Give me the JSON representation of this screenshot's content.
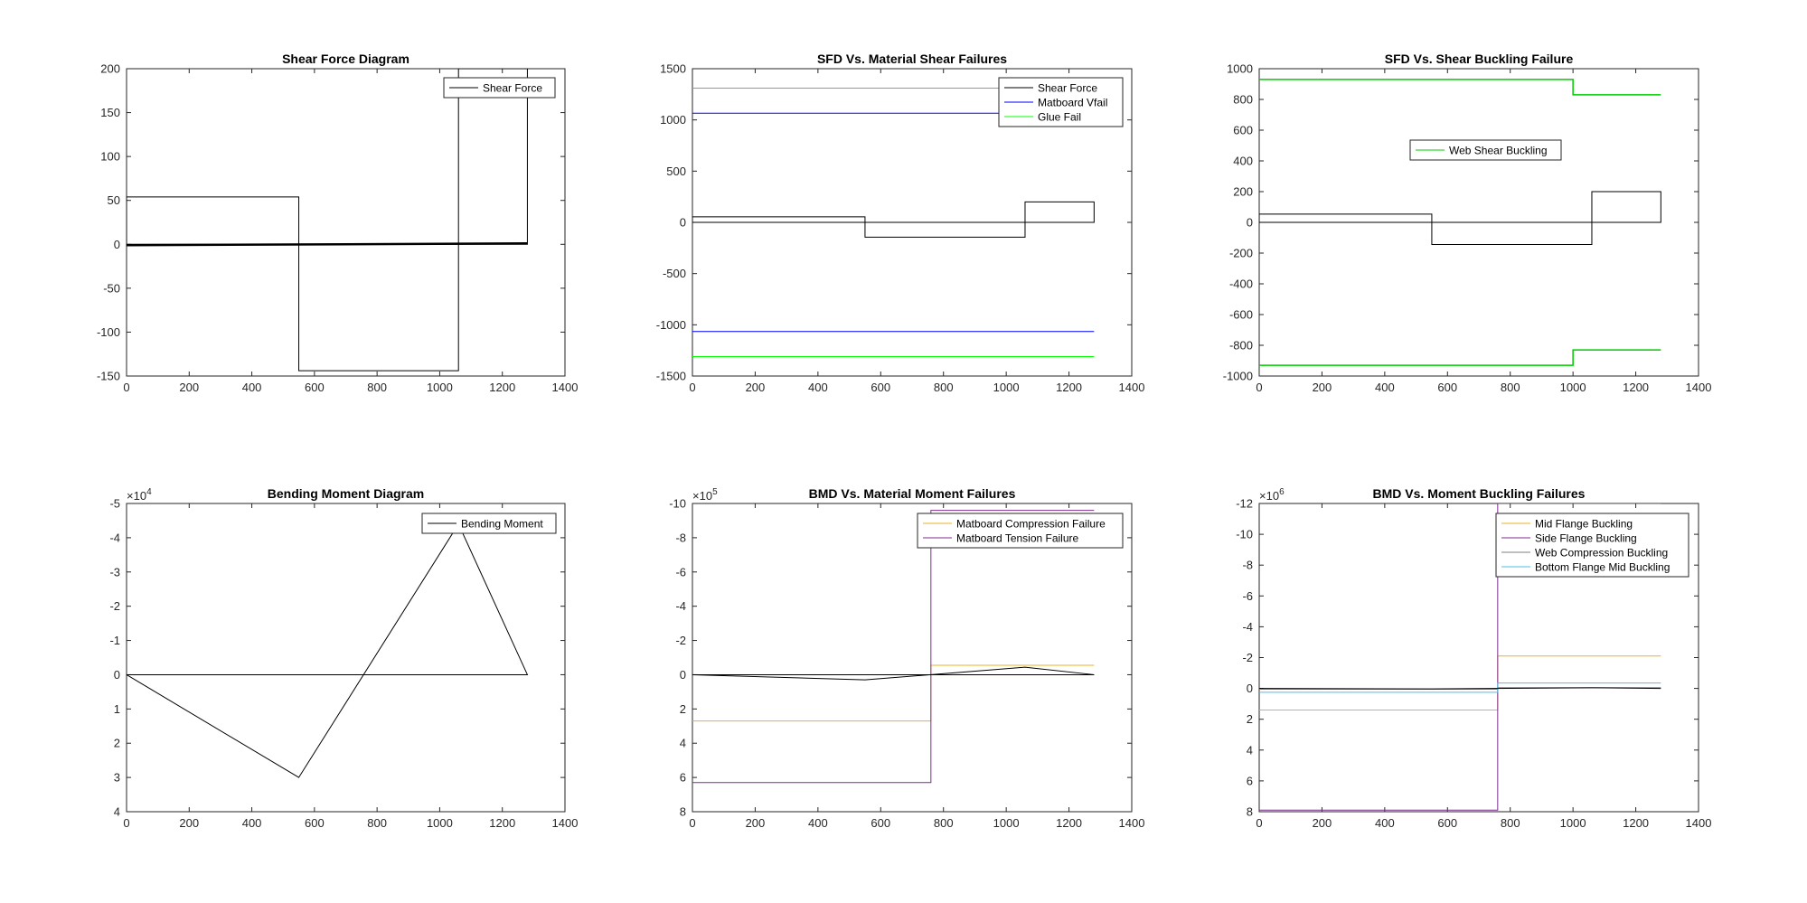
{
  "figure": {
    "background": "#ffffff"
  },
  "colors": {
    "black": "#000000",
    "blue": "#0000ff",
    "green": "#00ff00",
    "green_dark": "#00cc00",
    "yellow": "#edb120",
    "purple": "#7e2f8e",
    "cyan": "#4dbeee",
    "gray": "#7f7f7f"
  },
  "chart_data": [
    {
      "type": "line",
      "title": "Shear Force Diagram",
      "xlabel": "",
      "ylabel": "",
      "xlim": [
        0,
        1400
      ],
      "ylim": [
        -150,
        200
      ],
      "xticks": [
        0,
        200,
        400,
        600,
        800,
        1000,
        1200,
        1400
      ],
      "yticks": [
        -150,
        -100,
        -50,
        0,
        50,
        100,
        150,
        200
      ],
      "reversed_y": false,
      "exponent": "",
      "legend": {
        "position": "top-right",
        "entries": [
          "Shear Force"
        ]
      },
      "series": [
        {
          "name": "Shear Force",
          "color": "#000000",
          "width": 1,
          "x": [
            0,
            0,
            550,
            550,
            1060,
            1060,
            1280,
            1280,
            0
          ],
          "y": [
            0,
            54,
            54,
            -144,
            -144,
            200,
            200,
            0,
            0
          ]
        },
        {
          "color": "#000000",
          "width": 2.5,
          "x": [
            0,
            1280
          ],
          "y": [
            -1,
            1
          ]
        }
      ]
    },
    {
      "type": "line",
      "title": "SFD Vs. Material Shear Failures",
      "xlabel": "",
      "ylabel": "",
      "xlim": [
        0,
        1400
      ],
      "ylim": [
        -1500,
        1500
      ],
      "xticks": [
        0,
        200,
        400,
        600,
        800,
        1000,
        1200,
        1400
      ],
      "yticks": [
        -1500,
        -1000,
        -500,
        0,
        500,
        1000,
        1500
      ],
      "reversed_y": false,
      "exponent": "",
      "legend": {
        "position": "top-right",
        "entries": [
          "Shear Force",
          "Matboard Vfail",
          "Glue Fail"
        ]
      },
      "series": [
        {
          "name": "Shear Force",
          "color": "#000000",
          "width": 1,
          "x": [
            0,
            0,
            550,
            550,
            1060,
            1060,
            1280,
            1280,
            0
          ],
          "y": [
            0,
            54,
            54,
            -144,
            -144,
            200,
            200,
            0,
            0
          ]
        },
        {
          "name": "Matboard Vfail",
          "color": "#0000ff",
          "width": 1,
          "x": [
            0,
            1280
          ],
          "y": [
            1065,
            1065
          ]
        },
        {
          "color": "#0000ff",
          "width": 1,
          "x": [
            0,
            1280
          ],
          "y": [
            -1065,
            -1065
          ]
        },
        {
          "name": "Glue Fail",
          "color": "#00ff00",
          "width": 1,
          "x": [
            0,
            1280
          ],
          "y": [
            1310,
            1310
          ]
        },
        {
          "color": "#00ff00",
          "width": 1,
          "x": [
            0,
            1280
          ],
          "y": [
            -1310,
            -1310
          ]
        }
      ]
    },
    {
      "type": "line",
      "title": "SFD Vs. Shear Buckling Failure",
      "xlabel": "",
      "ylabel": "",
      "xlim": [
        0,
        1400
      ],
      "ylim": [
        -1000,
        1000
      ],
      "xticks": [
        0,
        200,
        400,
        600,
        800,
        1000,
        1200,
        1400
      ],
      "yticks": [
        -1000,
        -800,
        -600,
        -400,
        -200,
        0,
        200,
        400,
        600,
        800,
        1000
      ],
      "reversed_y": false,
      "exponent": "",
      "legend": {
        "position": "center",
        "entries": [
          "Web Shear Buckling"
        ]
      },
      "series": [
        {
          "color": "#000000",
          "width": 1,
          "x": [
            0,
            0,
            550,
            550,
            1060,
            1060,
            1280,
            1280,
            0
          ],
          "y": [
            0,
            54,
            54,
            -144,
            -144,
            200,
            200,
            0,
            0
          ]
        },
        {
          "name": "Web Shear Buckling",
          "color": "#00cc00",
          "width": 1.5,
          "x": [
            0,
            1000,
            1000,
            1280
          ],
          "y": [
            930,
            930,
            830,
            830
          ]
        },
        {
          "color": "#00cc00",
          "width": 1.5,
          "x": [
            0,
            1000,
            1000,
            1280
          ],
          "y": [
            -930,
            -930,
            -830,
            -830
          ]
        }
      ]
    },
    {
      "type": "line",
      "title": "Bending Moment Diagram",
      "xlabel": "",
      "ylabel": "",
      "xlim": [
        0,
        1400
      ],
      "ylim": [
        -5,
        4
      ],
      "xticks": [
        0,
        200,
        400,
        600,
        800,
        1000,
        1200,
        1400
      ],
      "yticks": [
        -5,
        -4,
        -3,
        -2,
        -1,
        0,
        1,
        2,
        3,
        4
      ],
      "reversed_y": true,
      "exponent": "4",
      "legend": {
        "position": "top-right",
        "entries": [
          "Bending Moment"
        ]
      },
      "series": [
        {
          "name": "Bending Moment",
          "color": "#000000",
          "width": 1,
          "x": [
            0,
            550,
            1060,
            1280,
            0
          ],
          "y": [
            0,
            3.0,
            -4.4,
            0,
            0
          ]
        }
      ]
    },
    {
      "type": "line",
      "title": "BMD Vs. Material Moment Failures",
      "xlabel": "",
      "ylabel": "",
      "xlim": [
        0,
        1400
      ],
      "ylim": [
        -10,
        8
      ],
      "xticks": [
        0,
        200,
        400,
        600,
        800,
        1000,
        1200,
        1400
      ],
      "yticks": [
        -10,
        -8,
        -6,
        -4,
        -2,
        0,
        2,
        4,
        6,
        8
      ],
      "reversed_y": true,
      "exponent": "5",
      "legend": {
        "position": "top-right",
        "entries": [
          "Matboard Compression Failure",
          "Matboard Tension Failure"
        ]
      },
      "series": [
        {
          "name": "Matboard Compression Failure",
          "color": "#edb120",
          "width": 1,
          "x": [
            0,
            760,
            760,
            1280
          ],
          "y": [
            2.7,
            2.7,
            -0.55,
            -0.55
          ]
        },
        {
          "name": "Matboard Tension Failure",
          "color": "#7e2f8e",
          "width": 1,
          "x": [
            0,
            760,
            760,
            1280
          ],
          "y": [
            6.3,
            6.3,
            -9.6,
            -9.6
          ]
        },
        {
          "color": "#000000",
          "width": 1,
          "x": [
            0,
            550,
            1060,
            1280
          ],
          "y": [
            0,
            0.3,
            -0.44,
            0
          ]
        },
        {
          "color": "#000000",
          "width": 1,
          "x": [
            0,
            1280
          ],
          "y": [
            0,
            0
          ]
        }
      ]
    },
    {
      "type": "line",
      "title": "BMD Vs. Moment Buckling Failures",
      "xlabel": "",
      "ylabel": "",
      "xlim": [
        0,
        1400
      ],
      "ylim": [
        -12,
        8
      ],
      "xticks": [
        0,
        200,
        400,
        600,
        800,
        1000,
        1200,
        1400
      ],
      "yticks": [
        -12,
        -10,
        -8,
        -6,
        -4,
        -2,
        0,
        2,
        4,
        6,
        8
      ],
      "reversed_y": true,
      "exponent": "6",
      "legend": {
        "position": "top-right",
        "entries": [
          "Mid Flange Buckling",
          "Side Flange Buckling",
          "Web Compression Buckling",
          "Bottom Flange Mid Buckling"
        ]
      },
      "series": [
        {
          "name": "Mid Flange Buckling",
          "color": "#edb120",
          "width": 1,
          "x": [
            0,
            760,
            760,
            1280
          ],
          "y": [
            1.4,
            1.4,
            -2.1,
            -2.1
          ]
        },
        {
          "name": "Side Flange Buckling",
          "color": "#7e2f8e",
          "width": 1,
          "x": [
            0,
            760,
            760,
            1280
          ],
          "y": [
            7.9,
            7.9,
            -12,
            -12
          ]
        },
        {
          "name": "Web Compression Buckling",
          "color": "#7f7f7f",
          "width": 1,
          "x": [
            0,
            760,
            760,
            1280
          ],
          "y": [
            0.05,
            0.05,
            -0.05,
            -0.05
          ]
        },
        {
          "name": "Bottom Flange Mid Buckling",
          "color": "#4dbeee",
          "width": 1,
          "x": [
            0,
            760,
            760,
            1280
          ],
          "y": [
            0.25,
            0.25,
            -0.35,
            -0.35
          ]
        },
        {
          "color": "#000000",
          "width": 1,
          "x": [
            0,
            550,
            1060,
            1280
          ],
          "y": [
            0,
            0.03,
            -0.044,
            0
          ]
        }
      ]
    }
  ]
}
